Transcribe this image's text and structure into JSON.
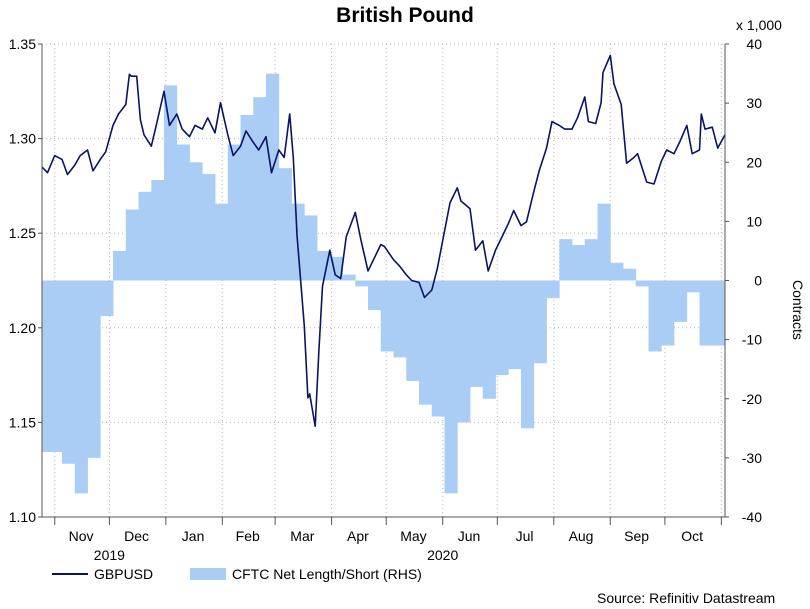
{
  "chart_data": {
    "type": "line+area",
    "title": "British Pound",
    "right_axis_unit": "x 1,000",
    "right_axis_label": "Contracts",
    "source": "Source: Refinitiv Datastream",
    "left_axis": {
      "ticks": [
        "1.10",
        "1.15",
        "1.20",
        "1.25",
        "1.30",
        "1.35"
      ],
      "range": [
        1.1,
        1.35
      ]
    },
    "right_axis": {
      "ticks": [
        "-40",
        "-30",
        "-20",
        "-10",
        "0",
        "10",
        "20",
        "30",
        "40"
      ],
      "range": [
        -40,
        40
      ]
    },
    "x_axis": {
      "months": [
        "Nov",
        "Dec",
        "Jan",
        "Feb",
        "Mar",
        "Apr",
        "May",
        "Jun",
        "Jul",
        "Aug",
        "Sep",
        "Oct"
      ],
      "years": [
        "2019",
        "2020"
      ],
      "start": "2019-10-25",
      "end": "2020-11-03",
      "month_boundaries": [
        "2019-11-01",
        "2019-12-01",
        "2020-01-01",
        "2020-02-01",
        "2020-03-01",
        "2020-04-01",
        "2020-05-01",
        "2020-06-01",
        "2020-07-01",
        "2020-08-01",
        "2020-09-01",
        "2020-10-01",
        "2020-11-01"
      ],
      "year_label_dates": [
        "2019-12-01",
        "2020-06-01"
      ]
    },
    "grid": true,
    "series": [
      {
        "name": "GBPUSD",
        "axis": "left",
        "color": "#0a1364",
        "points": [
          [
            "2019-10-25",
            1.285
          ],
          [
            "2019-10-28",
            1.282
          ],
          [
            "2019-11-01",
            1.291
          ],
          [
            "2019-11-05",
            1.289
          ],
          [
            "2019-11-08",
            1.281
          ],
          [
            "2019-11-12",
            1.286
          ],
          [
            "2019-11-15",
            1.291
          ],
          [
            "2019-11-19",
            1.294
          ],
          [
            "2019-11-22",
            1.283
          ],
          [
            "2019-11-26",
            1.289
          ],
          [
            "2019-11-29",
            1.293
          ],
          [
            "2019-12-03",
            1.307
          ],
          [
            "2019-12-06",
            1.313
          ],
          [
            "2019-12-10",
            1.318
          ],
          [
            "2019-12-12",
            1.334
          ],
          [
            "2019-12-13",
            1.333
          ],
          [
            "2019-12-16",
            1.333
          ],
          [
            "2019-12-18",
            1.31
          ],
          [
            "2019-12-20",
            1.302
          ],
          [
            "2019-12-24",
            1.296
          ],
          [
            "2019-12-27",
            1.308
          ],
          [
            "2019-12-31",
            1.325
          ],
          [
            "2020-01-03",
            1.307
          ],
          [
            "2020-01-07",
            1.313
          ],
          [
            "2020-01-10",
            1.305
          ],
          [
            "2020-01-14",
            1.301
          ],
          [
            "2020-01-17",
            1.307
          ],
          [
            "2020-01-21",
            1.305
          ],
          [
            "2020-01-24",
            1.311
          ],
          [
            "2020-01-28",
            1.303
          ],
          [
            "2020-01-31",
            1.319
          ],
          [
            "2020-02-04",
            1.302
          ],
          [
            "2020-02-07",
            1.291
          ],
          [
            "2020-02-11",
            1.296
          ],
          [
            "2020-02-14",
            1.304
          ],
          [
            "2020-02-18",
            1.298
          ],
          [
            "2020-02-21",
            1.294
          ],
          [
            "2020-02-25",
            1.301
          ],
          [
            "2020-02-28",
            1.282
          ],
          [
            "2020-03-03",
            1.294
          ],
          [
            "2020-03-06",
            1.29
          ],
          [
            "2020-03-09",
            1.313
          ],
          [
            "2020-03-11",
            1.29
          ],
          [
            "2020-03-13",
            1.249
          ],
          [
            "2020-03-17",
            1.201
          ],
          [
            "2020-03-19",
            1.163
          ],
          [
            "2020-03-20",
            1.165
          ],
          [
            "2020-03-23",
            1.148
          ],
          [
            "2020-03-25",
            1.187
          ],
          [
            "2020-03-27",
            1.222
          ],
          [
            "2020-03-30",
            1.236
          ],
          [
            "2020-03-31",
            1.241
          ],
          [
            "2020-04-03",
            1.228
          ],
          [
            "2020-04-06",
            1.226
          ],
          [
            "2020-04-09",
            1.248
          ],
          [
            "2020-04-14",
            1.261
          ],
          [
            "2020-04-17",
            1.247
          ],
          [
            "2020-04-21",
            1.23
          ],
          [
            "2020-04-24",
            1.236
          ],
          [
            "2020-04-28",
            1.244
          ],
          [
            "2020-04-30",
            1.243
          ],
          [
            "2020-05-05",
            1.236
          ],
          [
            "2020-05-08",
            1.233
          ],
          [
            "2020-05-12",
            1.228
          ],
          [
            "2020-05-15",
            1.225
          ],
          [
            "2020-05-19",
            1.224
          ],
          [
            "2020-05-22",
            1.216
          ],
          [
            "2020-05-26",
            1.22
          ],
          [
            "2020-05-29",
            1.231
          ],
          [
            "2020-06-02",
            1.251
          ],
          [
            "2020-06-05",
            1.266
          ],
          [
            "2020-06-09",
            1.274
          ],
          [
            "2020-06-11",
            1.267
          ],
          [
            "2020-06-16",
            1.263
          ],
          [
            "2020-06-19",
            1.241
          ],
          [
            "2020-06-23",
            1.246
          ],
          [
            "2020-06-26",
            1.23
          ],
          [
            "2020-06-30",
            1.241
          ],
          [
            "2020-07-03",
            1.247
          ],
          [
            "2020-07-07",
            1.255
          ],
          [
            "2020-07-10",
            1.262
          ],
          [
            "2020-07-14",
            1.254
          ],
          [
            "2020-07-17",
            1.256
          ],
          [
            "2020-07-21",
            1.272
          ],
          [
            "2020-07-24",
            1.283
          ],
          [
            "2020-07-28",
            1.295
          ],
          [
            "2020-07-31",
            1.309
          ],
          [
            "2020-08-04",
            1.307
          ],
          [
            "2020-08-07",
            1.305
          ],
          [
            "2020-08-11",
            1.305
          ],
          [
            "2020-08-14",
            1.311
          ],
          [
            "2020-08-18",
            1.322
          ],
          [
            "2020-08-20",
            1.309
          ],
          [
            "2020-08-24",
            1.308
          ],
          [
            "2020-08-27",
            1.319
          ],
          [
            "2020-08-28",
            1.335
          ],
          [
            "2020-09-01",
            1.344
          ],
          [
            "2020-09-03",
            1.329
          ],
          [
            "2020-09-07",
            1.318
          ],
          [
            "2020-09-10",
            1.287
          ],
          [
            "2020-09-14",
            1.29
          ],
          [
            "2020-09-16",
            1.292
          ],
          [
            "2020-09-21",
            1.277
          ],
          [
            "2020-09-25",
            1.276
          ],
          [
            "2020-09-29",
            1.288
          ],
          [
            "2020-10-02",
            1.294
          ],
          [
            "2020-10-06",
            1.292
          ],
          [
            "2020-10-09",
            1.298
          ],
          [
            "2020-10-13",
            1.307
          ],
          [
            "2020-10-16",
            1.292
          ],
          [
            "2020-10-20",
            1.294
          ],
          [
            "2020-10-21",
            1.313
          ],
          [
            "2020-10-23",
            1.305
          ],
          [
            "2020-10-27",
            1.306
          ],
          [
            "2020-10-30",
            1.295
          ],
          [
            "2020-11-03",
            1.302
          ]
        ]
      },
      {
        "name": "CFTC Net Length/Short (RHS)",
        "axis": "right",
        "color": "#aacdf5",
        "steps": [
          [
            "2019-10-25",
            -29
          ],
          [
            "2019-10-29",
            -29
          ],
          [
            "2019-11-05",
            -31
          ],
          [
            "2019-11-12",
            -36
          ],
          [
            "2019-11-19",
            -30
          ],
          [
            "2019-11-26",
            -6
          ],
          [
            "2019-12-03",
            5
          ],
          [
            "2019-12-10",
            12
          ],
          [
            "2019-12-17",
            15
          ],
          [
            "2019-12-24",
            17
          ],
          [
            "2019-12-31",
            33
          ],
          [
            "2020-01-07",
            23
          ],
          [
            "2020-01-14",
            20
          ],
          [
            "2020-01-21",
            18
          ],
          [
            "2020-01-28",
            13
          ],
          [
            "2020-02-04",
            23
          ],
          [
            "2020-02-11",
            28
          ],
          [
            "2020-02-18",
            31
          ],
          [
            "2020-02-25",
            35
          ],
          [
            "2020-03-03",
            19
          ],
          [
            "2020-03-10",
            13
          ],
          [
            "2020-03-17",
            11
          ],
          [
            "2020-03-24",
            5
          ],
          [
            "2020-03-31",
            4
          ],
          [
            "2020-04-07",
            1
          ],
          [
            "2020-04-14",
            -1
          ],
          [
            "2020-04-21",
            -5
          ],
          [
            "2020-04-28",
            -12
          ],
          [
            "2020-05-05",
            -13
          ],
          [
            "2020-05-12",
            -17
          ],
          [
            "2020-05-19",
            -21
          ],
          [
            "2020-05-26",
            -23
          ],
          [
            "2020-06-02",
            -36
          ],
          [
            "2020-06-09",
            -24
          ],
          [
            "2020-06-16",
            -18
          ],
          [
            "2020-06-23",
            -20
          ],
          [
            "2020-06-30",
            -16
          ],
          [
            "2020-07-07",
            -15
          ],
          [
            "2020-07-14",
            -25
          ],
          [
            "2020-07-21",
            -14
          ],
          [
            "2020-07-28",
            -3
          ],
          [
            "2020-08-04",
            7
          ],
          [
            "2020-08-11",
            6
          ],
          [
            "2020-08-18",
            7
          ],
          [
            "2020-08-25",
            13
          ],
          [
            "2020-09-01",
            3
          ],
          [
            "2020-09-08",
            2
          ],
          [
            "2020-09-15",
            -1
          ],
          [
            "2020-09-22",
            -12
          ],
          [
            "2020-09-29",
            -11
          ],
          [
            "2020-10-06",
            -7
          ],
          [
            "2020-10-13",
            -2
          ],
          [
            "2020-10-20",
            -11
          ],
          [
            "2020-11-03",
            -11
          ]
        ]
      }
    ]
  }
}
